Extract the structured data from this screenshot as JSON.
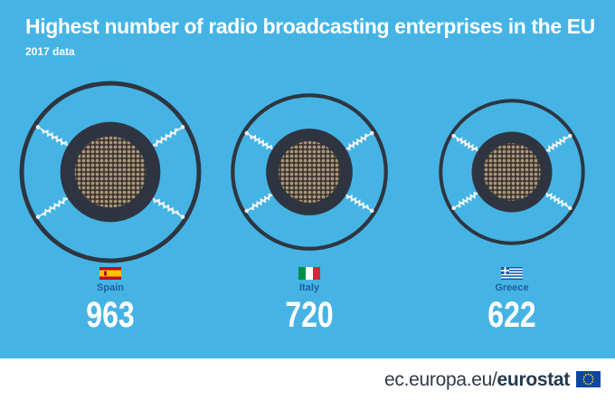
{
  "header": {
    "title": "Highest number of radio broadcasting enterprises in the EU",
    "subtitle": "2017 data"
  },
  "footer": {
    "site": "ec.europa.eu/",
    "brand": "eurostat"
  },
  "colors": {
    "background": "#45b4e5",
    "ring": "#2f3540",
    "speaker_mesh": "#a8957a",
    "value_text": "#ffffff",
    "label_text": "#1f5f9e"
  },
  "icons": [
    "flag-spain-icon",
    "flag-italy-icon",
    "flag-greece-icon",
    "eu-flag-icon"
  ],
  "chart_data": {
    "type": "bar",
    "title": "Highest number of radio broadcasting enterprises in the EU",
    "subtitle": "2017 data",
    "categories": [
      "Spain",
      "Italy",
      "Greece"
    ],
    "values": [
      963,
      720,
      622
    ],
    "value_labels": [
      "963",
      "720",
      "622"
    ]
  }
}
